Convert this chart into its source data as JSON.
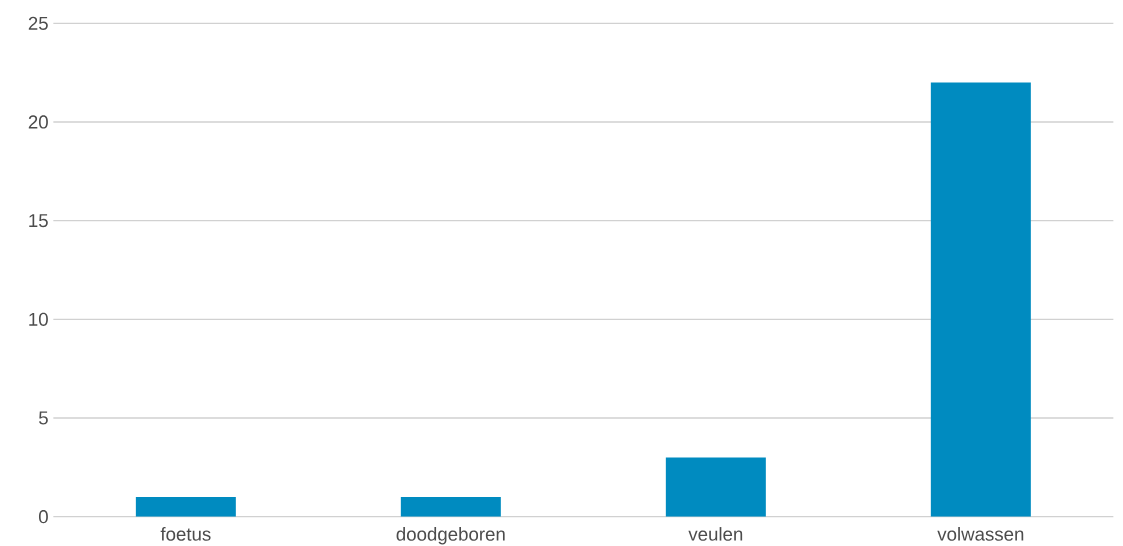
{
  "chart_data": {
    "type": "bar",
    "categories": [
      "foetus",
      "doodgeboren",
      "veulen",
      "volwassen"
    ],
    "values": [
      1,
      1,
      3,
      22
    ],
    "color": "#008bc0",
    "ylim": [
      0,
      25
    ],
    "yticks": [
      0,
      5,
      10,
      15,
      20,
      25
    ],
    "grid": "y"
  }
}
